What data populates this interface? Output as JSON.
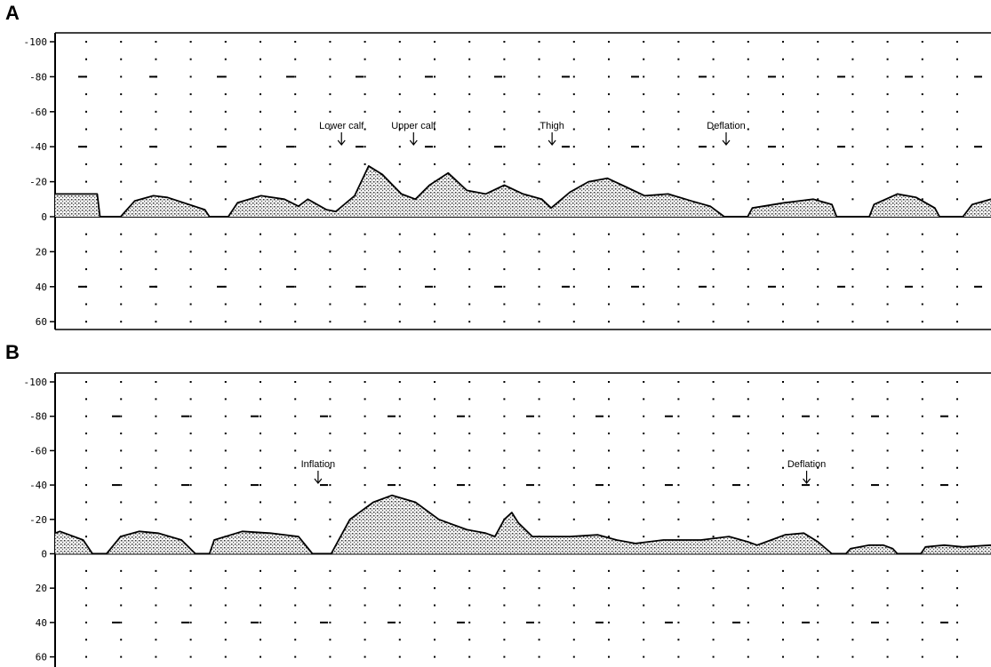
{
  "panels": [
    {
      "letter": "A",
      "y_ticks": [
        "-100",
        "-80",
        "-60",
        "-40",
        "-20",
        "0",
        "20",
        "40",
        "60"
      ],
      "annotations": [
        {
          "label": "Lower calf",
          "t": 0.306
        },
        {
          "label": "Upper calf",
          "t": 0.383
        },
        {
          "label": "Thigh",
          "t": 0.531
        },
        {
          "label": "Deflation",
          "t": 0.717
        }
      ]
    },
    {
      "letter": "B",
      "y_ticks": [
        "-100",
        "-80",
        "-60",
        "-40",
        "-20",
        "0",
        "20",
        "40",
        "60"
      ],
      "annotations": [
        {
          "label": "Inflation",
          "t": 0.281
        },
        {
          "label": "Deflation",
          "t": 0.803
        }
      ]
    }
  ],
  "chart_data": [
    {
      "type": "area",
      "title": "A",
      "ylim": [
        -100,
        60
      ],
      "y_inverted": true,
      "xlabel": "",
      "ylabel": "",
      "grid": "dotted",
      "envelope_points": [
        [
          0.0,
          -13
        ],
        [
          0.045,
          -13
        ],
        [
          0.048,
          0
        ],
        [
          0.07,
          0
        ],
        [
          0.085,
          -9
        ],
        [
          0.105,
          -12
        ],
        [
          0.12,
          -11
        ],
        [
          0.16,
          -4
        ],
        [
          0.165,
          0
        ],
        [
          0.185,
          0
        ],
        [
          0.195,
          -8
        ],
        [
          0.22,
          -12
        ],
        [
          0.245,
          -10
        ],
        [
          0.26,
          -6
        ],
        [
          0.27,
          -10
        ],
        [
          0.29,
          -4
        ],
        [
          0.3,
          -3
        ],
        [
          0.32,
          -12
        ],
        [
          0.335,
          -29
        ],
        [
          0.35,
          -24
        ],
        [
          0.37,
          -13
        ],
        [
          0.385,
          -10
        ],
        [
          0.4,
          -18
        ],
        [
          0.42,
          -25
        ],
        [
          0.44,
          -15
        ],
        [
          0.46,
          -13
        ],
        [
          0.48,
          -18
        ],
        [
          0.5,
          -13
        ],
        [
          0.52,
          -10
        ],
        [
          0.53,
          -5
        ],
        [
          0.55,
          -14
        ],
        [
          0.57,
          -20
        ],
        [
          0.59,
          -22
        ],
        [
          0.61,
          -17
        ],
        [
          0.63,
          -12
        ],
        [
          0.655,
          -13
        ],
        [
          0.68,
          -9
        ],
        [
          0.7,
          -6
        ],
        [
          0.715,
          0
        ],
        [
          0.74,
          0
        ],
        [
          0.745,
          -5
        ],
        [
          0.78,
          -8
        ],
        [
          0.81,
          -10
        ],
        [
          0.83,
          -7
        ],
        [
          0.835,
          0
        ],
        [
          0.87,
          0
        ],
        [
          0.875,
          -7
        ],
        [
          0.9,
          -13
        ],
        [
          0.92,
          -11
        ],
        [
          0.94,
          -5
        ],
        [
          0.945,
          0
        ],
        [
          0.97,
          0
        ],
        [
          0.98,
          -7
        ],
        [
          1.0,
          -10
        ]
      ]
    },
    {
      "type": "area",
      "title": "B",
      "ylim": [
        -100,
        60
      ],
      "y_inverted": true,
      "xlabel": "",
      "ylabel": "",
      "grid": "dotted",
      "envelope_points": [
        [
          0.0,
          -12
        ],
        [
          0.005,
          -13
        ],
        [
          0.03,
          -8
        ],
        [
          0.04,
          0
        ],
        [
          0.055,
          0
        ],
        [
          0.07,
          -10
        ],
        [
          0.09,
          -13
        ],
        [
          0.11,
          -12
        ],
        [
          0.135,
          -8
        ],
        [
          0.15,
          0
        ],
        [
          0.165,
          0
        ],
        [
          0.17,
          -8
        ],
        [
          0.2,
          -13
        ],
        [
          0.23,
          -12
        ],
        [
          0.26,
          -10
        ],
        [
          0.275,
          0
        ],
        [
          0.295,
          0
        ],
        [
          0.315,
          -20
        ],
        [
          0.34,
          -30
        ],
        [
          0.36,
          -34
        ],
        [
          0.385,
          -30
        ],
        [
          0.41,
          -20
        ],
        [
          0.44,
          -14
        ],
        [
          0.46,
          -12
        ],
        [
          0.47,
          -10
        ],
        [
          0.48,
          -20
        ],
        [
          0.488,
          -24
        ],
        [
          0.495,
          -18
        ],
        [
          0.51,
          -10
        ],
        [
          0.55,
          -10
        ],
        [
          0.58,
          -11
        ],
        [
          0.6,
          -8
        ],
        [
          0.62,
          -6
        ],
        [
          0.65,
          -8
        ],
        [
          0.69,
          -8
        ],
        [
          0.72,
          -10
        ],
        [
          0.74,
          -7
        ],
        [
          0.75,
          -5
        ],
        [
          0.76,
          -7
        ],
        [
          0.78,
          -11
        ],
        [
          0.8,
          -12
        ],
        [
          0.815,
          -7
        ],
        [
          0.83,
          0
        ],
        [
          0.845,
          0
        ],
        [
          0.85,
          -3
        ],
        [
          0.87,
          -5
        ],
        [
          0.885,
          -5
        ],
        [
          0.895,
          -3
        ],
        [
          0.9,
          0
        ],
        [
          0.925,
          0
        ],
        [
          0.93,
          -4
        ],
        [
          0.95,
          -5
        ],
        [
          0.97,
          -4
        ],
        [
          1.0,
          -5
        ]
      ]
    }
  ]
}
